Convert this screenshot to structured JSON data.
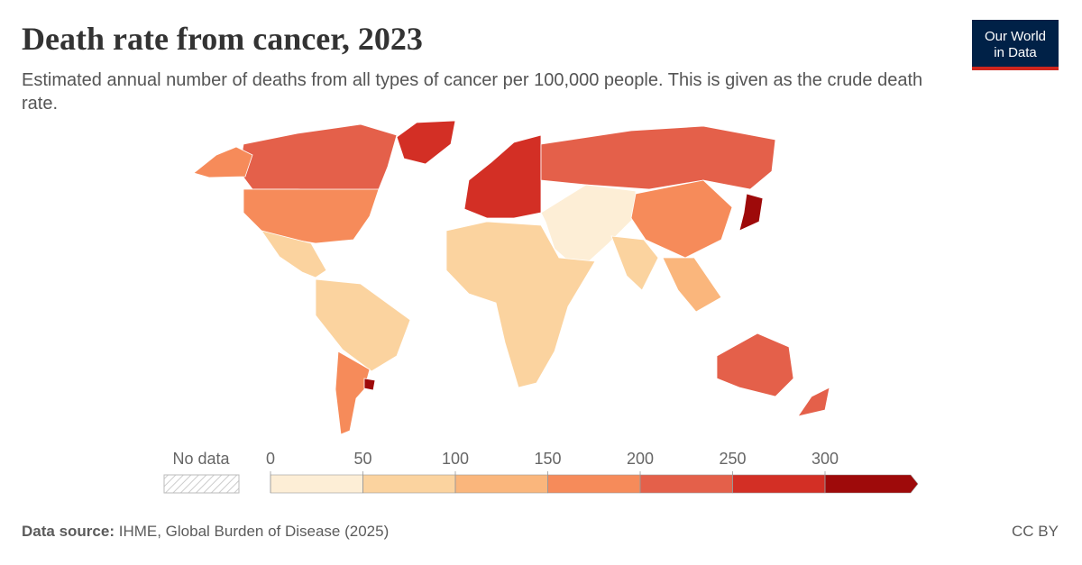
{
  "title": "Death rate from cancer, 2023",
  "subtitle": "Estimated annual number of deaths from all types of cancer per 100,000 people. This is given as the crude death rate.",
  "logo": [
    "Our World",
    "in Data"
  ],
  "source_label": "Data source:",
  "source": "IHME, Global Burden of Disease (2025)",
  "license": "CC BY",
  "chart_data": {
    "type": "choropleth",
    "values": [
      240,
      190,
      255,
      190,
      60,
      95,
      170,
      310,
      270,
      215,
      40,
      185,
      60,
      120,
      55,
      330,
      215,
      230
    ],
    "ticks": [
      0,
      50,
      100,
      150,
      200,
      250,
      300
    ],
    "colors": [
      "#fdeed6",
      "#fbd39f",
      "#fab67c",
      "#f68b5a",
      "#e4604a",
      "#d32f25",
      "#9e0a0a"
    ],
    "no_data_label": "No data"
  }
}
